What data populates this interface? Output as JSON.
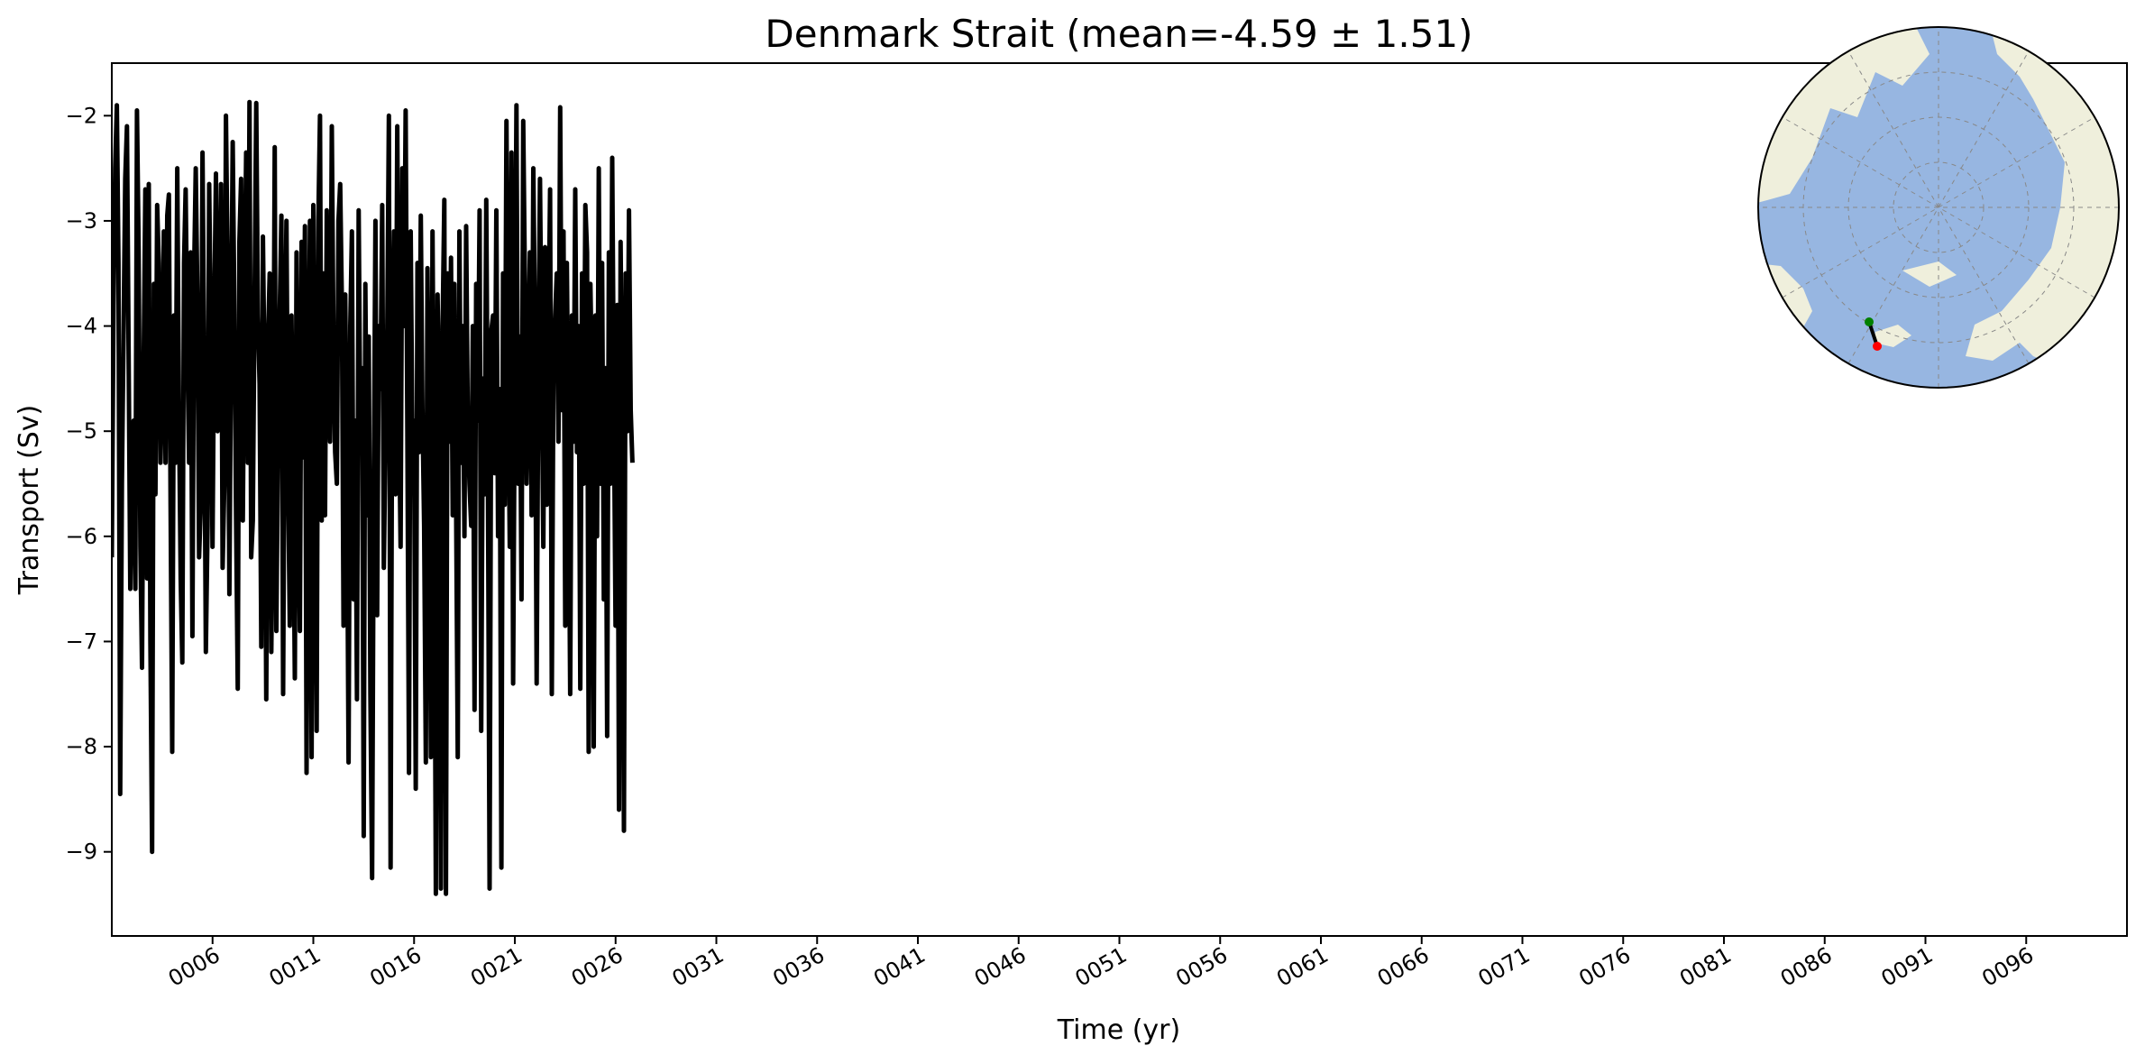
{
  "chart_data": {
    "type": "line",
    "title": "Denmark Strait (mean=-4.59 ± 1.51)",
    "xlabel": "Time (yr)",
    "ylabel": "Transport (Sv)",
    "xlim": [
      1,
      101
    ],
    "ylim": [
      -9.8,
      -1.5
    ],
    "x_ticks": [
      6,
      11,
      16,
      21,
      26,
      31,
      36,
      41,
      46,
      51,
      56,
      61,
      66,
      71,
      76,
      81,
      86,
      91,
      96
    ],
    "x_tick_labels": [
      "0006",
      "0011",
      "0016",
      "0021",
      "0026",
      "0031",
      "0036",
      "0041",
      "0046",
      "0051",
      "0056",
      "0061",
      "0066",
      "0071",
      "0076",
      "0081",
      "0086",
      "0091",
      "0096"
    ],
    "y_ticks": [
      -9,
      -8,
      -7,
      -6,
      -5,
      -4,
      -3,
      -2
    ],
    "y_tick_labels": [
      "−9",
      "−8",
      "−7",
      "−6",
      "−5",
      "−4",
      "−3",
      "−2"
    ],
    "line_color": "#000000",
    "grid": false,
    "series": [
      {
        "x_start": 1.0,
        "x_step": 0.08333,
        "values": [
          -6.2,
          -3.8,
          -2.5,
          -1.9,
          -3.4,
          -8.45,
          -5.5,
          -4.1,
          -2.6,
          -2.1,
          -4.2,
          -6.5,
          -5.2,
          -4.9,
          -6.5,
          -1.95,
          -3.3,
          -6.1,
          -7.25,
          -4.3,
          -2.7,
          -6.4,
          -2.65,
          -7.0,
          -9.0,
          -3.6,
          -5.6,
          -2.85,
          -3.4,
          -5.3,
          -4.5,
          -3.1,
          -5.3,
          -2.95,
          -2.75,
          -5.7,
          -8.05,
          -3.9,
          -5.3,
          -2.5,
          -4.8,
          -6.4,
          -7.2,
          -3.4,
          -2.7,
          -4.2,
          -5.3,
          -3.3,
          -6.95,
          -3.5,
          -2.5,
          -3.8,
          -6.2,
          -5.7,
          -2.35,
          -4.3,
          -7.1,
          -5.9,
          -2.65,
          -4.1,
          -6.1,
          -3.9,
          -2.55,
          -5.0,
          -4.15,
          -2.65,
          -6.3,
          -5.5,
          -2.0,
          -3.5,
          -6.55,
          -4.2,
          -2.25,
          -3.9,
          -5.8,
          -7.45,
          -3.2,
          -2.6,
          -5.85,
          -3.85,
          -2.35,
          -5.3,
          -1.87,
          -6.2,
          -5.85,
          -3.8,
          -1.88,
          -3.9,
          -4.55,
          -7.05,
          -3.15,
          -4.6,
          -7.55,
          -4.15,
          -3.5,
          -7.1,
          -5.6,
          -2.3,
          -6.9,
          -5.05,
          -3.9,
          -2.95,
          -7.5,
          -4.4,
          -3.0,
          -5.5,
          -6.85,
          -3.9,
          -5.4,
          -7.35,
          -3.3,
          -5.3,
          -6.9,
          -3.2,
          -5.25,
          -3.05,
          -8.25,
          -5.0,
          -3.0,
          -8.1,
          -2.85,
          -5.4,
          -7.85,
          -3.0,
          -2.0,
          -5.85,
          -3.5,
          -5.8,
          -2.9,
          -4.6,
          -5.1,
          -2.1,
          -4.1,
          -5.2,
          -5.5,
          -3.0,
          -2.65,
          -3.8,
          -6.85,
          -3.7,
          -5.3,
          -8.15,
          -4.0,
          -3.1,
          -6.6,
          -4.9,
          -7.55,
          -2.9,
          -5.0,
          -4.4,
          -8.85,
          -3.6,
          -5.8,
          -4.1,
          -7.5,
          -9.25,
          -5.6,
          -3.0,
          -6.75,
          -4.0,
          -4.6,
          -2.85,
          -6.3,
          -5.0,
          -4.2,
          -2.0,
          -9.15,
          -4.3,
          -3.1,
          -5.6,
          -2.1,
          -4.8,
          -6.1,
          -2.5,
          -4.0,
          -1.95,
          -5.0,
          -8.25,
          -3.1,
          -5.1,
          -4.9,
          -8.4,
          -3.4,
          -5.2,
          -2.95,
          -4.8,
          -5.9,
          -8.15,
          -3.45,
          -5.2,
          -8.1,
          -3.1,
          -5.7,
          -9.4,
          -3.7,
          -4.8,
          -9.35,
          -4.0,
          -2.8,
          -9.4,
          -3.5,
          -5.1,
          -3.35,
          -5.8,
          -3.6,
          -5.6,
          -8.1,
          -3.1,
          -5.3,
          -4.0,
          -6.0,
          -3.05,
          -4.9,
          -5.5,
          -5.9,
          -4.0,
          -7.65,
          -3.6,
          -4.9,
          -2.9,
          -7.85,
          -4.5,
          -5.6,
          -2.8,
          -5.5,
          -9.35,
          -4.05,
          -3.9,
          -5.4,
          -2.9,
          -6.0,
          -4.6,
          -9.15,
          -3.5,
          -5.7,
          -2.05,
          -4.4,
          -6.1,
          -2.35,
          -7.4,
          -4.4,
          -1.9,
          -5.5,
          -4.1,
          -6.6,
          -2.05,
          -3.6,
          -5.5,
          -4.4,
          -3.3,
          -5.8,
          -2.5,
          -4.0,
          -7.4,
          -4.4,
          -2.6,
          -4.4,
          -6.1,
          -3.25,
          -5.7,
          -4.2,
          -2.7,
          -7.5,
          -4.4,
          -3.9,
          -3.5,
          -5.1,
          -1.92,
          -4.8,
          -3.1,
          -6.85,
          -3.4,
          -5.2,
          -7.5,
          -3.9,
          -5.1,
          -2.7,
          -5.2,
          -4.0,
          -7.45,
          -3.5,
          -5.5,
          -2.85,
          -3.3,
          -8.05,
          -3.6,
          -4.6,
          -8.0,
          -3.9,
          -6.0,
          -2.5,
          -5.5,
          -3.4,
          -6.6,
          -4.4,
          -7.9,
          -3.3,
          -5.5,
          -2.4,
          -4.8,
          -6.85,
          -3.8,
          -8.6,
          -3.2,
          -5.1,
          -8.8,
          -3.5,
          -5.0,
          -2.9,
          -4.8,
          -5.3
        ]
      }
    ]
  },
  "inset_map": {
    "type": "north-polar-stereographic",
    "land_color": "#efefdc",
    "ocean_color": "#97b6e1",
    "section_start_color": "#008000",
    "section_end_color": "#ff0000"
  }
}
